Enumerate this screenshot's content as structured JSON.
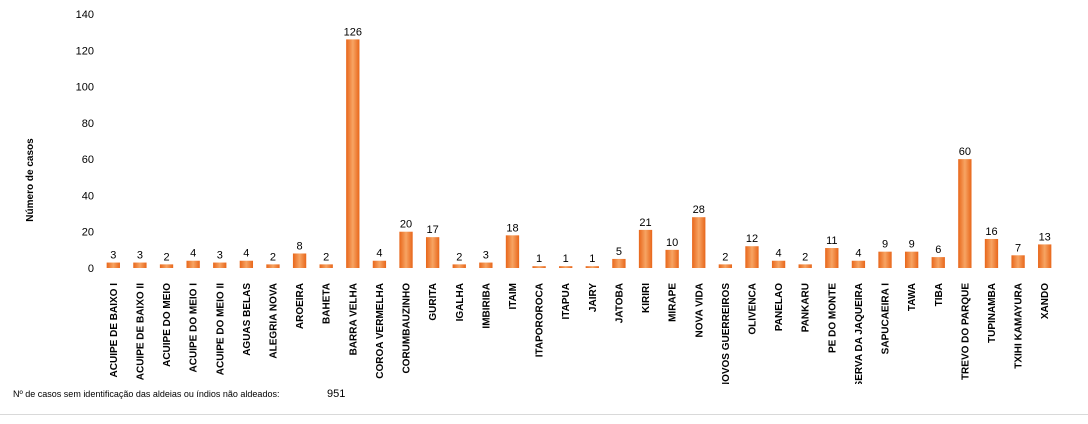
{
  "chart_data": {
    "type": "bar",
    "ylabel": "Número de casos",
    "ylim": [
      0,
      140
    ],
    "yticks": [
      0,
      20,
      40,
      60,
      80,
      100,
      120,
      140
    ],
    "grid": false,
    "legend": "none",
    "bar_color": "#f07a1e",
    "categories": [
      "ACUIPE DE BAIXO I",
      "ACUIPE DE BAIXO II",
      "ACUIPE DO MEIO",
      "ACUIPE DO MEIO I",
      "ACUIPE DO MEIO II",
      "AGUAS BELAS",
      "ALEGRIA NOVA",
      "AROEIRA",
      "BAHETA",
      "BARRA VELHA",
      "COROA VERMELHA",
      "CORUMBAUZINHO",
      "GURITA",
      "IGALHA",
      "IMBIRIBA",
      "ITAIM",
      "ITAPOROROCA",
      "ITAPUA",
      "JAIRY",
      "JATOBA",
      "KIRIRI",
      "MIRAPE",
      "NOVA VIDA",
      "NOVOS GUERREIROS",
      "OLIVENCA",
      "PANELAO",
      "PANKARU",
      "PE DO MONTE",
      "RESERVA DA JAQUEIRA",
      "SAPUCAEIRA I",
      "TAWA",
      "TIBA",
      "TREVO DO PARQUE",
      "TUPINAMBA",
      "TXIHI KAMAYURA",
      "XANDO"
    ],
    "values": [
      3,
      3,
      2,
      4,
      3,
      4,
      2,
      8,
      2,
      126,
      4,
      20,
      17,
      2,
      3,
      18,
      1,
      1,
      1,
      5,
      21,
      10,
      28,
      2,
      12,
      4,
      2,
      11,
      4,
      9,
      9,
      6,
      60,
      16,
      7,
      13
    ]
  },
  "footer": {
    "label": "Nº de casos sem identificação das aldeias ou índios não aldeados:",
    "value": "951"
  }
}
